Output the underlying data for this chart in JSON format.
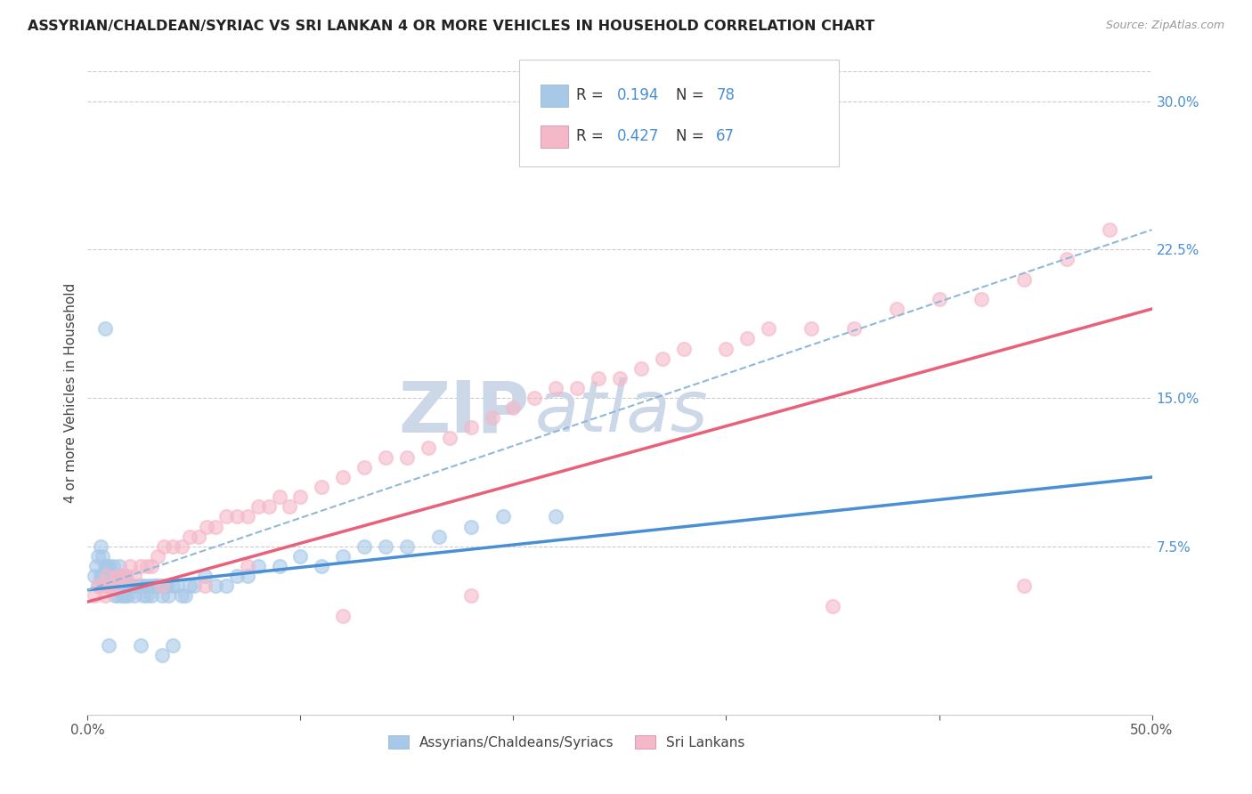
{
  "title": "ASSYRIAN/CHALDEAN/SYRIAC VS SRI LANKAN 4 OR MORE VEHICLES IN HOUSEHOLD CORRELATION CHART",
  "source": "Source: ZipAtlas.com",
  "ylabel": "4 or more Vehicles in Household",
  "xmin": 0.0,
  "xmax": 0.5,
  "ymin": -0.01,
  "ymax": 0.315,
  "x_ticks": [
    0.0,
    0.1,
    0.2,
    0.3,
    0.4,
    0.5
  ],
  "x_tick_labels": [
    "0.0%",
    "",
    "",
    "",
    "",
    "50.0%"
  ],
  "y_ticks_right": [
    0.075,
    0.15,
    0.225,
    0.3
  ],
  "y_tick_labels_right": [
    "7.5%",
    "15.0%",
    "22.5%",
    "30.0%"
  ],
  "blue_color": "#a8c8e8",
  "pink_color": "#f5b8c8",
  "blue_line_color": "#4a8fd4",
  "pink_line_color": "#e8607a",
  "dash_line_color": "#90b8d8",
  "watermark_color": "#ccd8e8",
  "legend_R1": "0.194",
  "legend_N1": "78",
  "legend_R2": "0.427",
  "legend_N2": "67",
  "legend_label1": "Assyrians/Chaldeans/Syriacs",
  "legend_label2": "Sri Lankans",
  "blue_scatter_x": [
    0.003,
    0.004,
    0.005,
    0.005,
    0.006,
    0.006,
    0.007,
    0.007,
    0.008,
    0.008,
    0.009,
    0.009,
    0.01,
    0.01,
    0.011,
    0.011,
    0.012,
    0.012,
    0.013,
    0.013,
    0.014,
    0.014,
    0.015,
    0.015,
    0.016,
    0.016,
    0.017,
    0.017,
    0.018,
    0.018,
    0.019,
    0.02,
    0.021,
    0.022,
    0.023,
    0.024,
    0.025,
    0.026,
    0.027,
    0.028,
    0.029,
    0.03,
    0.031,
    0.032,
    0.033,
    0.034,
    0.035,
    0.036,
    0.037,
    0.038,
    0.04,
    0.042,
    0.044,
    0.046,
    0.048,
    0.05,
    0.055,
    0.06,
    0.065,
    0.07,
    0.075,
    0.08,
    0.09,
    0.1,
    0.11,
    0.12,
    0.13,
    0.14,
    0.15,
    0.165,
    0.18,
    0.195,
    0.035,
    0.04,
    0.025,
    0.01,
    0.008,
    0.22
  ],
  "blue_scatter_y": [
    0.06,
    0.065,
    0.055,
    0.07,
    0.06,
    0.075,
    0.06,
    0.07,
    0.055,
    0.065,
    0.055,
    0.065,
    0.055,
    0.065,
    0.055,
    0.06,
    0.055,
    0.065,
    0.05,
    0.06,
    0.05,
    0.06,
    0.055,
    0.065,
    0.05,
    0.06,
    0.05,
    0.06,
    0.05,
    0.06,
    0.05,
    0.055,
    0.055,
    0.05,
    0.055,
    0.055,
    0.055,
    0.05,
    0.055,
    0.05,
    0.055,
    0.05,
    0.055,
    0.055,
    0.055,
    0.055,
    0.05,
    0.055,
    0.055,
    0.05,
    0.055,
    0.055,
    0.05,
    0.05,
    0.055,
    0.055,
    0.06,
    0.055,
    0.055,
    0.06,
    0.06,
    0.065,
    0.065,
    0.07,
    0.065,
    0.07,
    0.075,
    0.075,
    0.075,
    0.08,
    0.085,
    0.09,
    0.02,
    0.025,
    0.025,
    0.025,
    0.185,
    0.09
  ],
  "pink_scatter_x": [
    0.003,
    0.005,
    0.007,
    0.008,
    0.009,
    0.01,
    0.012,
    0.014,
    0.016,
    0.018,
    0.02,
    0.022,
    0.025,
    0.028,
    0.03,
    0.033,
    0.036,
    0.04,
    0.044,
    0.048,
    0.052,
    0.056,
    0.06,
    0.065,
    0.07,
    0.075,
    0.08,
    0.085,
    0.09,
    0.095,
    0.1,
    0.11,
    0.12,
    0.13,
    0.14,
    0.15,
    0.16,
    0.17,
    0.18,
    0.19,
    0.2,
    0.21,
    0.22,
    0.23,
    0.24,
    0.25,
    0.26,
    0.27,
    0.28,
    0.3,
    0.31,
    0.32,
    0.34,
    0.36,
    0.38,
    0.4,
    0.42,
    0.44,
    0.46,
    0.48,
    0.035,
    0.055,
    0.075,
    0.12,
    0.18,
    0.35,
    0.44
  ],
  "pink_scatter_y": [
    0.05,
    0.055,
    0.055,
    0.05,
    0.06,
    0.055,
    0.055,
    0.06,
    0.06,
    0.06,
    0.065,
    0.06,
    0.065,
    0.065,
    0.065,
    0.07,
    0.075,
    0.075,
    0.075,
    0.08,
    0.08,
    0.085,
    0.085,
    0.09,
    0.09,
    0.09,
    0.095,
    0.095,
    0.1,
    0.095,
    0.1,
    0.105,
    0.11,
    0.115,
    0.12,
    0.12,
    0.125,
    0.13,
    0.135,
    0.14,
    0.145,
    0.15,
    0.155,
    0.155,
    0.16,
    0.16,
    0.165,
    0.17,
    0.175,
    0.175,
    0.18,
    0.185,
    0.185,
    0.185,
    0.195,
    0.2,
    0.2,
    0.21,
    0.22,
    0.235,
    0.055,
    0.055,
    0.065,
    0.04,
    0.05,
    0.045,
    0.055
  ],
  "blue_trendline_x": [
    0.0,
    0.5
  ],
  "blue_trendline_y": [
    0.053,
    0.11
  ],
  "pink_trendline_x": [
    0.0,
    0.5
  ],
  "pink_trendline_y": [
    0.047,
    0.195
  ],
  "dash_trendline_x": [
    0.0,
    0.5
  ],
  "dash_trendline_y": [
    0.053,
    0.235
  ]
}
